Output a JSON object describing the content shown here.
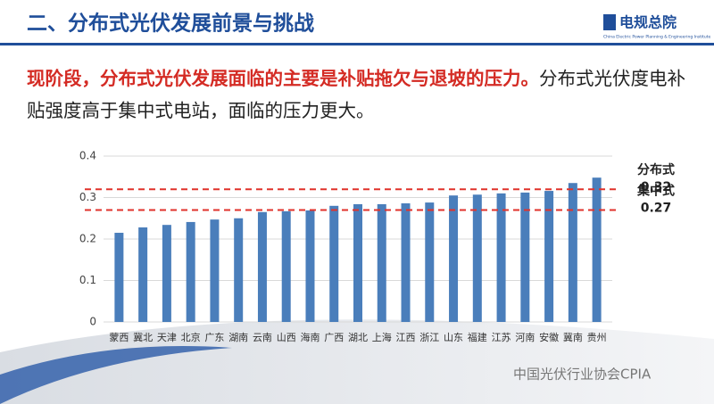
{
  "header": {
    "title": "二、分布式光伏发展前景与挑战",
    "logo": "电规总院",
    "logo_subtitle": "China Electric Power Planning & Engineering Institute"
  },
  "text": {
    "highlight": "现阶段，分布式光伏发展面临的主要是补贴拖欠与退坡的压力。",
    "body": "分布式光伏度电补贴强度高于集中式电站，面临的压力更大。"
  },
  "watermark": "中国光伏行业协会CPIA",
  "chart_data": {
    "type": "bar",
    "categories": [
      "蒙西",
      "冀北",
      "天津",
      "北京",
      "广东",
      "湖南",
      "云南",
      "山西",
      "海南",
      "广西",
      "湖北",
      "上海",
      "江西",
      "浙江",
      "山东",
      "福建",
      "江苏",
      "河南",
      "安徽",
      "冀南",
      "贵州"
    ],
    "values": [
      0.215,
      0.228,
      0.234,
      0.241,
      0.247,
      0.25,
      0.265,
      0.267,
      0.269,
      0.28,
      0.284,
      0.284,
      0.286,
      0.288,
      0.305,
      0.307,
      0.31,
      0.312,
      0.316,
      0.335,
      0.348
    ],
    "color": "#4a7ebb",
    "ylim": [
      0,
      0.4
    ],
    "yticks": [
      0,
      0.1,
      0.2,
      0.3,
      0.4
    ],
    "grid": true,
    "annotations": [
      {
        "label": "分布式",
        "value": 0.32,
        "color": "#e0322b"
      },
      {
        "label": "集中式",
        "value": 0.27,
        "color": "#e0322b"
      }
    ]
  }
}
